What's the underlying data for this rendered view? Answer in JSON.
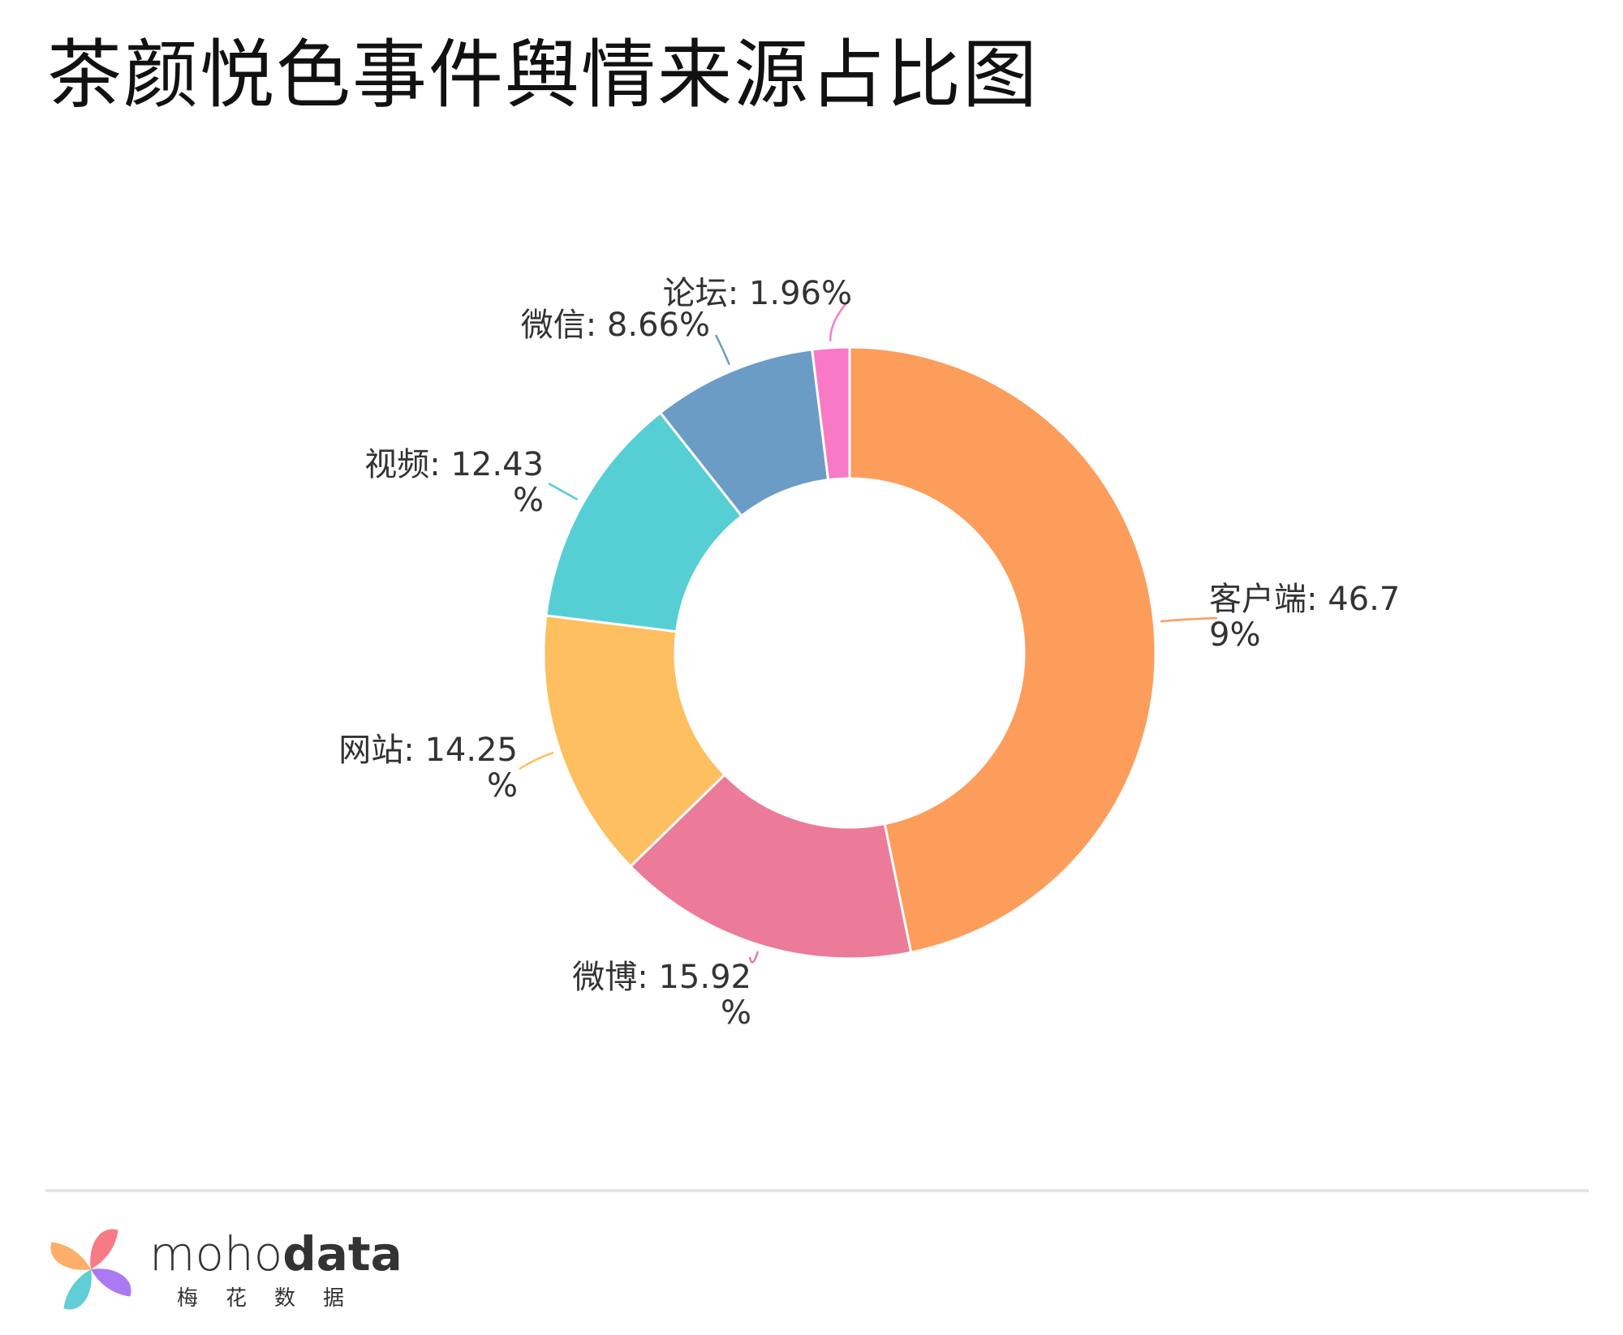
{
  "chart_data": {
    "type": "pie",
    "title": "茶颜悦色事件舆情来源占比图",
    "donut": true,
    "start": "top",
    "direction": "clockwise",
    "slices": [
      {
        "name": "客户端",
        "value": 46.79,
        "label_lines": [
          "客户端: 46.7",
          "9%"
        ],
        "color": "#fd9d5c"
      },
      {
        "name": "微博",
        "value": 15.92,
        "label_lines": [
          "微博: 15.92",
          "%"
        ],
        "color": "#ec7a99"
      },
      {
        "name": "网站",
        "value": 14.25,
        "label_lines": [
          "网站: 14.25",
          "%"
        ],
        "color": "#fdbf5f"
      },
      {
        "name": "视频",
        "value": 12.43,
        "label_lines": [
          "视频: 12.43",
          "%"
        ],
        "color": "#56cfd4"
      },
      {
        "name": "微信",
        "value": 8.66,
        "label_lines": [
          "微信: 8.66%"
        ],
        "color": "#6b9cc5"
      },
      {
        "name": "论坛",
        "value": 1.96,
        "label_lines": [
          "论坛: 1.96%"
        ],
        "color": "#f87ac6"
      }
    ]
  },
  "footer": {
    "brand_light": "moho",
    "brand_bold": "data",
    "brand_sub": "梅花数据"
  },
  "logo_colors": [
    "#f6707a",
    "#fca85c",
    "#54c9d4",
    "#a46ef0"
  ]
}
